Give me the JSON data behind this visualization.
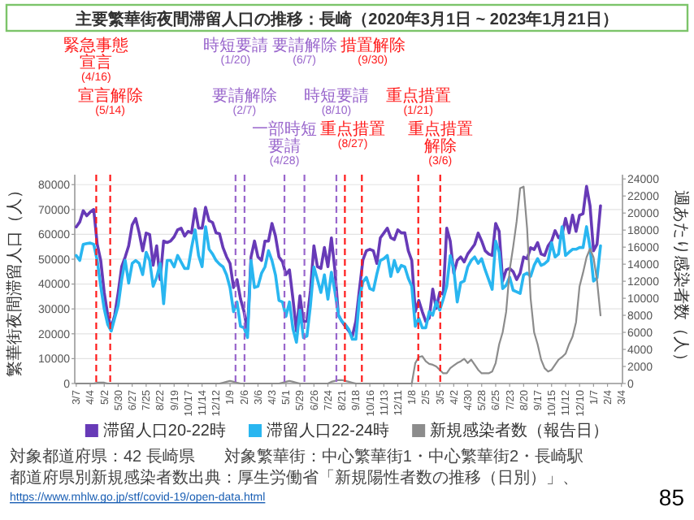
{
  "chart_data": {
    "type": "line",
    "title": "主要繁華街夜間滞留人口の推移：長崎（2020年3月1日 ~ 2023年1月21日）",
    "ylabel": "繁華街夜間滞留人口（人）",
    "y2label": "週あたり感染者数（人）",
    "x": [
      "2020-03-07",
      "2020-03-14",
      "2020-03-21",
      "2020-03-28",
      "2020-04-04",
      "2020-04-11",
      "2020-04-18",
      "2020-04-25",
      "2020-05-02",
      "2020-05-09",
      "2020-05-16",
      "2020-05-23",
      "2020-05-30",
      "2020-06-06",
      "2020-06-13",
      "2020-06-20",
      "2020-06-27",
      "2020-07-04",
      "2020-07-11",
      "2020-07-18",
      "2020-07-25",
      "2020-08-01",
      "2020-08-08",
      "2020-08-15",
      "2020-08-22",
      "2020-08-29",
      "2020-09-05",
      "2020-09-12",
      "2020-09-19",
      "2020-09-26",
      "2020-10-03",
      "2020-10-10",
      "2020-10-17",
      "2020-10-24",
      "2020-10-31",
      "2020-11-07",
      "2020-11-14",
      "2020-11-21",
      "2020-11-28",
      "2020-12-05",
      "2020-12-12",
      "2020-12-19",
      "2020-12-26",
      "2021-01-02",
      "2021-01-09",
      "2021-01-16",
      "2021-01-23",
      "2021-01-30",
      "2021-02-06",
      "2021-02-13",
      "2021-02-20",
      "2021-02-27",
      "2021-03-06",
      "2021-03-13",
      "2021-03-20",
      "2021-03-27",
      "2021-04-03",
      "2021-04-10",
      "2021-04-17",
      "2021-04-24",
      "2021-05-01",
      "2021-05-08",
      "2021-05-15",
      "2021-05-22",
      "2021-05-29",
      "2021-06-05",
      "2021-06-12",
      "2021-06-19",
      "2021-06-26",
      "2021-07-03",
      "2021-07-10",
      "2021-07-17",
      "2021-07-24",
      "2021-07-31",
      "2021-08-07",
      "2021-08-14",
      "2021-08-21",
      "2021-08-28",
      "2021-09-04",
      "2021-09-11",
      "2021-09-18",
      "2021-09-25",
      "2021-10-02",
      "2021-10-09",
      "2021-10-16",
      "2021-10-23",
      "2021-10-30",
      "2021-11-06",
      "2021-11-13",
      "2021-11-20",
      "2021-11-27",
      "2021-12-04",
      "2021-12-11",
      "2021-12-18",
      "2021-12-25",
      "2022-01-01",
      "2022-01-08",
      "2022-01-15",
      "2022-01-22",
      "2022-01-29",
      "2022-02-05",
      "2022-02-12",
      "2022-02-19",
      "2022-02-26",
      "2022-03-05",
      "2022-03-12",
      "2022-03-19",
      "2022-03-26",
      "2022-04-02",
      "2022-04-09",
      "2022-04-16",
      "2022-04-23",
      "2022-04-30",
      "2022-05-07",
      "2022-05-14",
      "2022-05-21",
      "2022-05-28",
      "2022-06-04",
      "2022-06-11",
      "2022-06-18",
      "2022-06-25",
      "2022-07-02",
      "2022-07-09",
      "2022-07-16",
      "2022-07-23",
      "2022-07-30",
      "2022-08-06",
      "2022-08-13",
      "2022-08-20",
      "2022-08-27",
      "2022-09-03",
      "2022-09-10",
      "2022-09-17",
      "2022-09-24",
      "2022-10-01",
      "2022-10-08",
      "2022-10-15",
      "2022-10-22",
      "2022-10-29",
      "2022-11-05",
      "2022-11-12",
      "2022-11-19",
      "2022-11-26",
      "2022-12-03",
      "2022-12-10",
      "2022-12-17",
      "2022-12-24",
      "2022-12-31",
      "2023-01-07",
      "2023-01-14",
      "2023-01-21"
    ],
    "xlim": [
      "2020-03-04",
      "2023-03-06"
    ],
    "xticks": [
      {
        "value": "2020-03-07",
        "label": "3/7"
      },
      {
        "value": "2020-04-04",
        "label": "4/4"
      },
      {
        "value": "2020-05-02",
        "label": "5/2"
      },
      {
        "value": "2020-05-30",
        "label": "5/30"
      },
      {
        "value": "2020-06-27",
        "label": "6/27"
      },
      {
        "value": "2020-07-25",
        "label": "7/25"
      },
      {
        "value": "2020-08-22",
        "label": "8/22"
      },
      {
        "value": "2020-09-19",
        "label": "9/19"
      },
      {
        "value": "2020-10-17",
        "label": "10/17"
      },
      {
        "value": "2020-11-14",
        "label": "11/14"
      },
      {
        "value": "2020-12-12",
        "label": "12/12"
      },
      {
        "value": "2021-01-09",
        "label": "1/9"
      },
      {
        "value": "2021-02-06",
        "label": "2/6"
      },
      {
        "value": "2021-03-06",
        "label": "3/6"
      },
      {
        "value": "2021-04-03",
        "label": "4/3"
      },
      {
        "value": "2021-05-01",
        "label": "5/1"
      },
      {
        "value": "2021-05-29",
        "label": "5/29"
      },
      {
        "value": "2021-06-26",
        "label": "6/26"
      },
      {
        "value": "2021-07-24",
        "label": "7/24"
      },
      {
        "value": "2021-08-21",
        "label": "8/21"
      },
      {
        "value": "2021-09-18",
        "label": "9/18"
      },
      {
        "value": "2021-10-16",
        "label": "10/16"
      },
      {
        "value": "2021-11-13",
        "label": "11/13"
      },
      {
        "value": "2021-12-11",
        "label": "12/11"
      },
      {
        "value": "2022-01-08",
        "label": "1/8"
      },
      {
        "value": "2022-02-05",
        "label": "2/5"
      },
      {
        "value": "2022-03-05",
        "label": "3/5"
      },
      {
        "value": "2022-04-02",
        "label": "4/2"
      },
      {
        "value": "2022-04-30",
        "label": "4/30"
      },
      {
        "value": "2022-05-28",
        "label": "5/28"
      },
      {
        "value": "2022-06-25",
        "label": "6/25"
      },
      {
        "value": "2022-07-23",
        "label": "7/23"
      },
      {
        "value": "2022-08-20",
        "label": "8/20"
      },
      {
        "value": "2022-09-17",
        "label": "9/17"
      },
      {
        "value": "2022-10-15",
        "label": "10/15"
      },
      {
        "value": "2022-11-12",
        "label": "11/12"
      },
      {
        "value": "2022-12-10",
        "label": "12/10"
      },
      {
        "value": "2023-01-07",
        "label": "1/7"
      },
      {
        "value": "2023-02-04",
        "label": "2/4"
      },
      {
        "value": "2023-03-04",
        "label": "3/4"
      }
    ],
    "ylim": [
      0,
      84000
    ],
    "yticks": [
      0,
      10000,
      20000,
      30000,
      40000,
      50000,
      60000,
      70000,
      80000
    ],
    "y2lim": [
      0,
      24500
    ],
    "y2ticks": [
      0,
      2000,
      4000,
      6000,
      8000,
      10000,
      12000,
      14000,
      16000,
      18000,
      20000,
      22000,
      24000
    ],
    "grid": "y",
    "legend": "bottom",
    "marker": "none",
    "line_style": "solid",
    "series": [
      {
        "name": "滞留人口20-22時",
        "color": "#673ab7",
        "values": [
          63000,
          65000,
          69500,
          67500,
          69000,
          70000,
          56000,
          49500,
          36600,
          27500,
          22400,
          27500,
          36600,
          47000,
          50900,
          55400,
          63800,
          66400,
          60600,
          53400,
          60500,
          59900,
          47600,
          55400,
          41800,
          57300,
          56700,
          57300,
          59000,
          61800,
          62500,
          59300,
          61200,
          60600,
          70300,
          62500,
          62500,
          70900,
          65500,
          64800,
          60600,
          60200,
          54600,
          51000,
          48300,
          38600,
          41800,
          34000,
          28900,
          21100,
          50900,
          57300,
          50900,
          49500,
          57300,
          57300,
          64400,
          59300,
          50900,
          49000,
          43800,
          45700,
          34000,
          21100,
          35300,
          25000,
          25000,
          37300,
          55400,
          47000,
          46300,
          54700,
          47000,
          58600,
          45700,
          27500,
          25000,
          23000,
          21100,
          19100,
          25000,
          37500,
          49600,
          53400,
          54000,
          53400,
          48300,
          58600,
          60500,
          62500,
          58600,
          57900,
          61800,
          60600,
          60600,
          53400,
          49500,
          28900,
          33400,
          28900,
          25000,
          26300,
          38000,
          30200,
          36600,
          35900,
          62500,
          57300,
          44400,
          49500,
          50900,
          48900,
          52100,
          54000,
          56000,
          60500,
          57300,
          53400,
          52100,
          51500,
          64400,
          61200,
          41200,
          45700,
          46300,
          45000,
          41800,
          44400,
          50900,
          50200,
          54600,
          53900,
          56700,
          52100,
          51500,
          55400,
          57300,
          61500,
          58600,
          59900,
          66400,
          60600,
          67700,
          61200,
          67700,
          68300,
          79300,
          71500,
          53400,
          56000,
          71500
        ]
      },
      {
        "name": "滞留人口22-24時",
        "color": "#29b6f0",
        "values": [
          51500,
          49500,
          56000,
          56300,
          56500,
          56000,
          49500,
          39100,
          30000,
          23700,
          21100,
          26300,
          31400,
          41800,
          49500,
          40400,
          48300,
          49500,
          48300,
          43800,
          52800,
          49500,
          39100,
          42700,
          48300,
          32100,
          49500,
          49500,
          46900,
          51500,
          48900,
          46300,
          46300,
          54700,
          61800,
          51500,
          47000,
          63100,
          54000,
          52100,
          49500,
          48000,
          46900,
          43700,
          38600,
          28900,
          32800,
          23000,
          22400,
          18500,
          49500,
          38600,
          39100,
          44300,
          46900,
          53400,
          49500,
          43700,
          33400,
          32800,
          27000,
          32800,
          22000,
          16600,
          29500,
          18500,
          19100,
          31400,
          46900,
          41800,
          36600,
          43700,
          33900,
          44800,
          37000,
          27500,
          25000,
          23700,
          21700,
          17800,
          17800,
          34000,
          40800,
          42700,
          38200,
          37500,
          44000,
          49500,
          50200,
          51500,
          43100,
          49500,
          44900,
          47500,
          46900,
          42300,
          39100,
          23000,
          26300,
          22400,
          22400,
          28900,
          27500,
          32800,
          29500,
          33900,
          39100,
          51500,
          46300,
          32800,
          40600,
          41200,
          46900,
          49500,
          50900,
          48300,
          50200,
          45700,
          41800,
          37900,
          57300,
          52800,
          38200,
          39500,
          42800,
          37500,
          36900,
          36200,
          43700,
          44400,
          43100,
          47500,
          50200,
          47500,
          48200,
          49500,
          56600,
          50900,
          52100,
          63100,
          51500,
          52800,
          54000,
          54000,
          54700,
          54700,
          63100,
          54700,
          41200,
          42500,
          55400
        ]
      },
      {
        "name": "新規感染者数（報告日）",
        "color": "#8c8c8c",
        "axis": "y2",
        "values": [
          0,
          0,
          0,
          0,
          0,
          0,
          100,
          100,
          100,
          0,
          0,
          0,
          0,
          0,
          0,
          0,
          0,
          0,
          0,
          0,
          0,
          0,
          0,
          0,
          0,
          0,
          0,
          0,
          0,
          0,
          0,
          0,
          0,
          0,
          0,
          0,
          0,
          0,
          0,
          0,
          0,
          0,
          100,
          200,
          300,
          200,
          100,
          0,
          0,
          0,
          0,
          0,
          0,
          0,
          0,
          0,
          0,
          0,
          0,
          100,
          200,
          300,
          200,
          100,
          0,
          0,
          0,
          0,
          0,
          0,
          0,
          0,
          0,
          200,
          300,
          400,
          400,
          300,
          200,
          100,
          0,
          0,
          0,
          0,
          0,
          0,
          0,
          0,
          0,
          0,
          0,
          0,
          0,
          0,
          0,
          0,
          0,
          2400,
          3100,
          3200,
          2600,
          2300,
          2200,
          2000,
          1600,
          1200,
          1200,
          1800,
          2100,
          2400,
          2600,
          2900,
          2400,
          2800,
          2200,
          1600,
          1200,
          1200,
          1200,
          1400,
          2400,
          4600,
          6000,
          8400,
          13300,
          16000,
          19000,
          22900,
          23100,
          18200,
          10000,
          6000,
          4600,
          2800,
          1800,
          1400,
          1600,
          2200,
          2800,
          3100,
          3500,
          4600,
          5500,
          7200,
          11400,
          13000,
          14800,
          15800,
          14800,
          12100,
          8000
        ]
      }
    ],
    "ref_lines": [
      {
        "axis": "x",
        "value": "2020-04-16",
        "label": "緊急事態宣言(4/16)",
        "color": "#ff1a1a",
        "line_style": "dashed"
      },
      {
        "axis": "x",
        "value": "2020-05-14",
        "label": "宣言解除(5/14)",
        "color": "#ff1a1a",
        "line_style": "dashed"
      },
      {
        "axis": "x",
        "value": "2021-01-20",
        "label": "時短要請(1/20)",
        "color": "#9966cc",
        "line_style": "dashed"
      },
      {
        "axis": "x",
        "value": "2021-02-07",
        "label": "要請解除(2/7)",
        "color": "#9966cc",
        "line_style": "dashed"
      },
      {
        "axis": "x",
        "value": "2021-04-28",
        "label": "一部時短要請(4/28)",
        "color": "#9966cc",
        "line_style": "dashed"
      },
      {
        "axis": "x",
        "value": "2021-06-07",
        "label": "要請解除(6/7)",
        "color": "#9966cc",
        "line_style": "dashed"
      },
      {
        "axis": "x",
        "value": "2021-08-10",
        "label": "時短要請(8/10)",
        "color": "#9966cc",
        "line_style": "dashed"
      },
      {
        "axis": "x",
        "value": "2021-08-27",
        "label": "重点措置(8/27)",
        "color": "#ff1a1a",
        "line_style": "dashed"
      },
      {
        "axis": "x",
        "value": "2021-09-30",
        "label": "措置解除(9/30)",
        "color": "#ff1a1a",
        "line_style": "dashed"
      },
      {
        "axis": "x",
        "value": "2022-01-21",
        "label": "重点措置(1/21)",
        "color": "#ff1a1a",
        "line_style": "dashed"
      },
      {
        "axis": "x",
        "value": "2022-03-06",
        "label": "重点措置解除(3/6)",
        "color": "#ff1a1a",
        "line_style": "dashed"
      }
    ],
    "annotations": [
      "対象都道府県：42 長崎県",
      "対象繁華街：中心繁華街1・中心繁華街2・長崎駅",
      "都道府県別新規感染者数出典：厚生労働省「新規陽性者数の推移（日別）」、",
      "https://www.mhlw.go.jp/stf/covid-19/open-data.html",
      "85"
    ]
  }
}
